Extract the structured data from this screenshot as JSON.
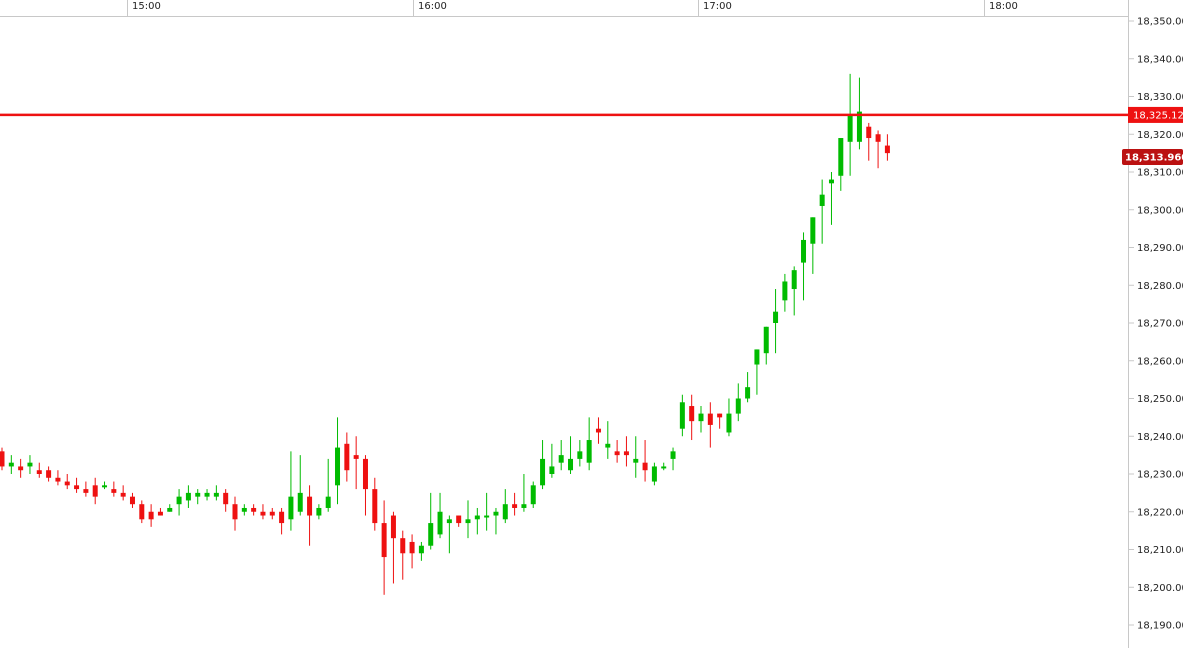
{
  "chart_data": {
    "type": "candlestick",
    "x_ticks": [
      "15:00",
      "16:00",
      "17:00",
      "18:00"
    ],
    "y_ticks": [
      "18,350.00",
      "18,340.00",
      "18,330.00",
      "18,320.00",
      "18,310.00",
      "18,300.00",
      "18,290.00",
      "18,280.00",
      "18,270.00",
      "18,260.00",
      "18,250.00",
      "18,240.00",
      "18,230.00",
      "18,220.00",
      "18,210.00",
      "18,200.00",
      "18,190.00"
    ],
    "ylim": [
      18187,
      18351
    ],
    "up_color": "#00bb00",
    "down_color": "#ee1111",
    "hline": {
      "value": 18325.12,
      "label": "18,325.12",
      "color": "#ee1111"
    },
    "last_price": {
      "value": 18313.96,
      "label": "18,313.960",
      "color": "#bb1111"
    },
    "candles": [
      [
        18236,
        18237,
        18231,
        18232
      ],
      [
        18232,
        18235,
        18230,
        18233
      ],
      [
        18232,
        18234,
        18229,
        18231
      ],
      [
        18232,
        18235,
        18230,
        18233
      ],
      [
        18231,
        18233,
        18229,
        18230
      ],
      [
        18231,
        18232,
        18228,
        18229
      ],
      [
        18229,
        18231,
        18227,
        18228
      ],
      [
        18228,
        18230,
        18226,
        18227
      ],
      [
        18227,
        18229,
        18225,
        18226
      ],
      [
        18226,
        18228,
        18224,
        18225
      ],
      [
        18227,
        18229,
        18222,
        18224
      ],
      [
        18227,
        18228,
        18226,
        18227
      ],
      [
        18226,
        18228,
        18224,
        18225
      ],
      [
        18225,
        18227,
        18223,
        18224
      ],
      [
        18224,
        18225,
        18221,
        18222
      ],
      [
        18222,
        18223,
        18217,
        18218
      ],
      [
        18220,
        18222,
        18216,
        18218
      ],
      [
        18220,
        18221,
        18219,
        18219
      ],
      [
        18220,
        18222,
        18220,
        18221
      ],
      [
        18222,
        18226,
        18219,
        18224
      ],
      [
        18223,
        18227,
        18221,
        18225
      ],
      [
        18224,
        18226,
        18222,
        18225
      ],
      [
        18224,
        18226,
        18223,
        18225
      ],
      [
        18224,
        18227,
        18223,
        18225
      ],
      [
        18225,
        18226,
        18220,
        18222
      ],
      [
        18222,
        18224,
        18215,
        18218
      ],
      [
        18220,
        18222,
        18219,
        18221
      ],
      [
        18221,
        18222,
        18219,
        18220
      ],
      [
        18220,
        18222,
        18218,
        18219
      ],
      [
        18220,
        18221,
        18218,
        18219
      ],
      [
        18220,
        18221,
        18214,
        18217
      ],
      [
        18218,
        18236,
        18215,
        18224
      ],
      [
        18220,
        18235,
        18219,
        18225
      ],
      [
        18224,
        18227,
        18211,
        18219
      ],
      [
        18219,
        18222,
        18218,
        18221
      ],
      [
        18221,
        18234,
        18220,
        18224
      ],
      [
        18227,
        18245,
        18222,
        18237
      ],
      [
        18238,
        18241,
        18228,
        18231
      ],
      [
        18235,
        18240,
        18226,
        18234
      ],
      [
        18234,
        18235,
        18219,
        18226
      ],
      [
        18226,
        18229,
        18215,
        18217
      ],
      [
        18217,
        18223,
        18198,
        18208
      ],
      [
        18219,
        18220,
        18201,
        18213
      ],
      [
        18213,
        18215,
        18202,
        18209
      ],
      [
        18212,
        18214,
        18205,
        18209
      ],
      [
        18209,
        18212,
        18207,
        18211
      ],
      [
        18211,
        18225,
        18210,
        18217
      ],
      [
        18214,
        18225,
        18213,
        18220
      ],
      [
        18217,
        18219,
        18209,
        18218
      ],
      [
        18219,
        18219,
        18216,
        18217
      ],
      [
        18217,
        18223,
        18213,
        18218
      ],
      [
        18218,
        18221,
        18214,
        18219
      ],
      [
        18219,
        18225,
        18215,
        18219
      ],
      [
        18219,
        18221,
        18214,
        18220
      ],
      [
        18218,
        18226,
        18217,
        18222
      ],
      [
        18222,
        18225,
        18219,
        18221
      ],
      [
        18221,
        18230,
        18220,
        18222
      ],
      [
        18222,
        18228,
        18221,
        18227
      ],
      [
        18227,
        18239,
        18226,
        18234
      ],
      [
        18230,
        18238,
        18229,
        18232
      ],
      [
        18233,
        18239,
        18231,
        18235
      ],
      [
        18231,
        18240,
        18230,
        18234
      ],
      [
        18234,
        18239,
        18232,
        18236
      ],
      [
        18233,
        18245,
        18231,
        18239
      ],
      [
        18242,
        18245,
        18238,
        18241
      ],
      [
        18237,
        18244,
        18234,
        18238
      ],
      [
        18236,
        18239,
        18233,
        18235
      ],
      [
        18236,
        18240,
        18232,
        18235
      ],
      [
        18233,
        18240,
        18229,
        18234
      ],
      [
        18233,
        18239,
        18228,
        18231
      ],
      [
        18228,
        18233,
        18227,
        18232
      ],
      [
        18232,
        18233,
        18231,
        18232
      ],
      [
        18234,
        18237,
        18231,
        18236
      ],
      [
        18242,
        18251,
        18240,
        18249
      ],
      [
        18248,
        18251,
        18239,
        18244
      ],
      [
        18244,
        18248,
        18241,
        18246
      ],
      [
        18246,
        18249,
        18237,
        18243
      ],
      [
        18246,
        18246,
        18242,
        18245
      ],
      [
        18241,
        18250,
        18240,
        18246
      ],
      [
        18246,
        18254,
        18244,
        18250
      ],
      [
        18250,
        18257,
        18249,
        18253
      ],
      [
        18259,
        18263,
        18251,
        18263
      ],
      [
        18262,
        18269,
        18259,
        18269
      ],
      [
        18270,
        18279,
        18262,
        18273
      ],
      [
        18276,
        18283,
        18273,
        18281
      ],
      [
        18279,
        18285,
        18272,
        18284
      ],
      [
        18286,
        18294,
        18276,
        18292
      ],
      [
        18291,
        18298,
        18283,
        18298
      ],
      [
        18301,
        18308,
        18291,
        18304
      ],
      [
        18307,
        18310,
        18296,
        18308
      ],
      [
        18309,
        18318,
        18305,
        18319
      ],
      [
        18318,
        18336,
        18309,
        18325
      ],
      [
        18318,
        18335,
        18316,
        18326
      ],
      [
        18322,
        18323,
        18313,
        18319
      ],
      [
        18320,
        18321,
        18311,
        18318
      ],
      [
        18317,
        18320,
        18313,
        18315
      ]
    ]
  }
}
